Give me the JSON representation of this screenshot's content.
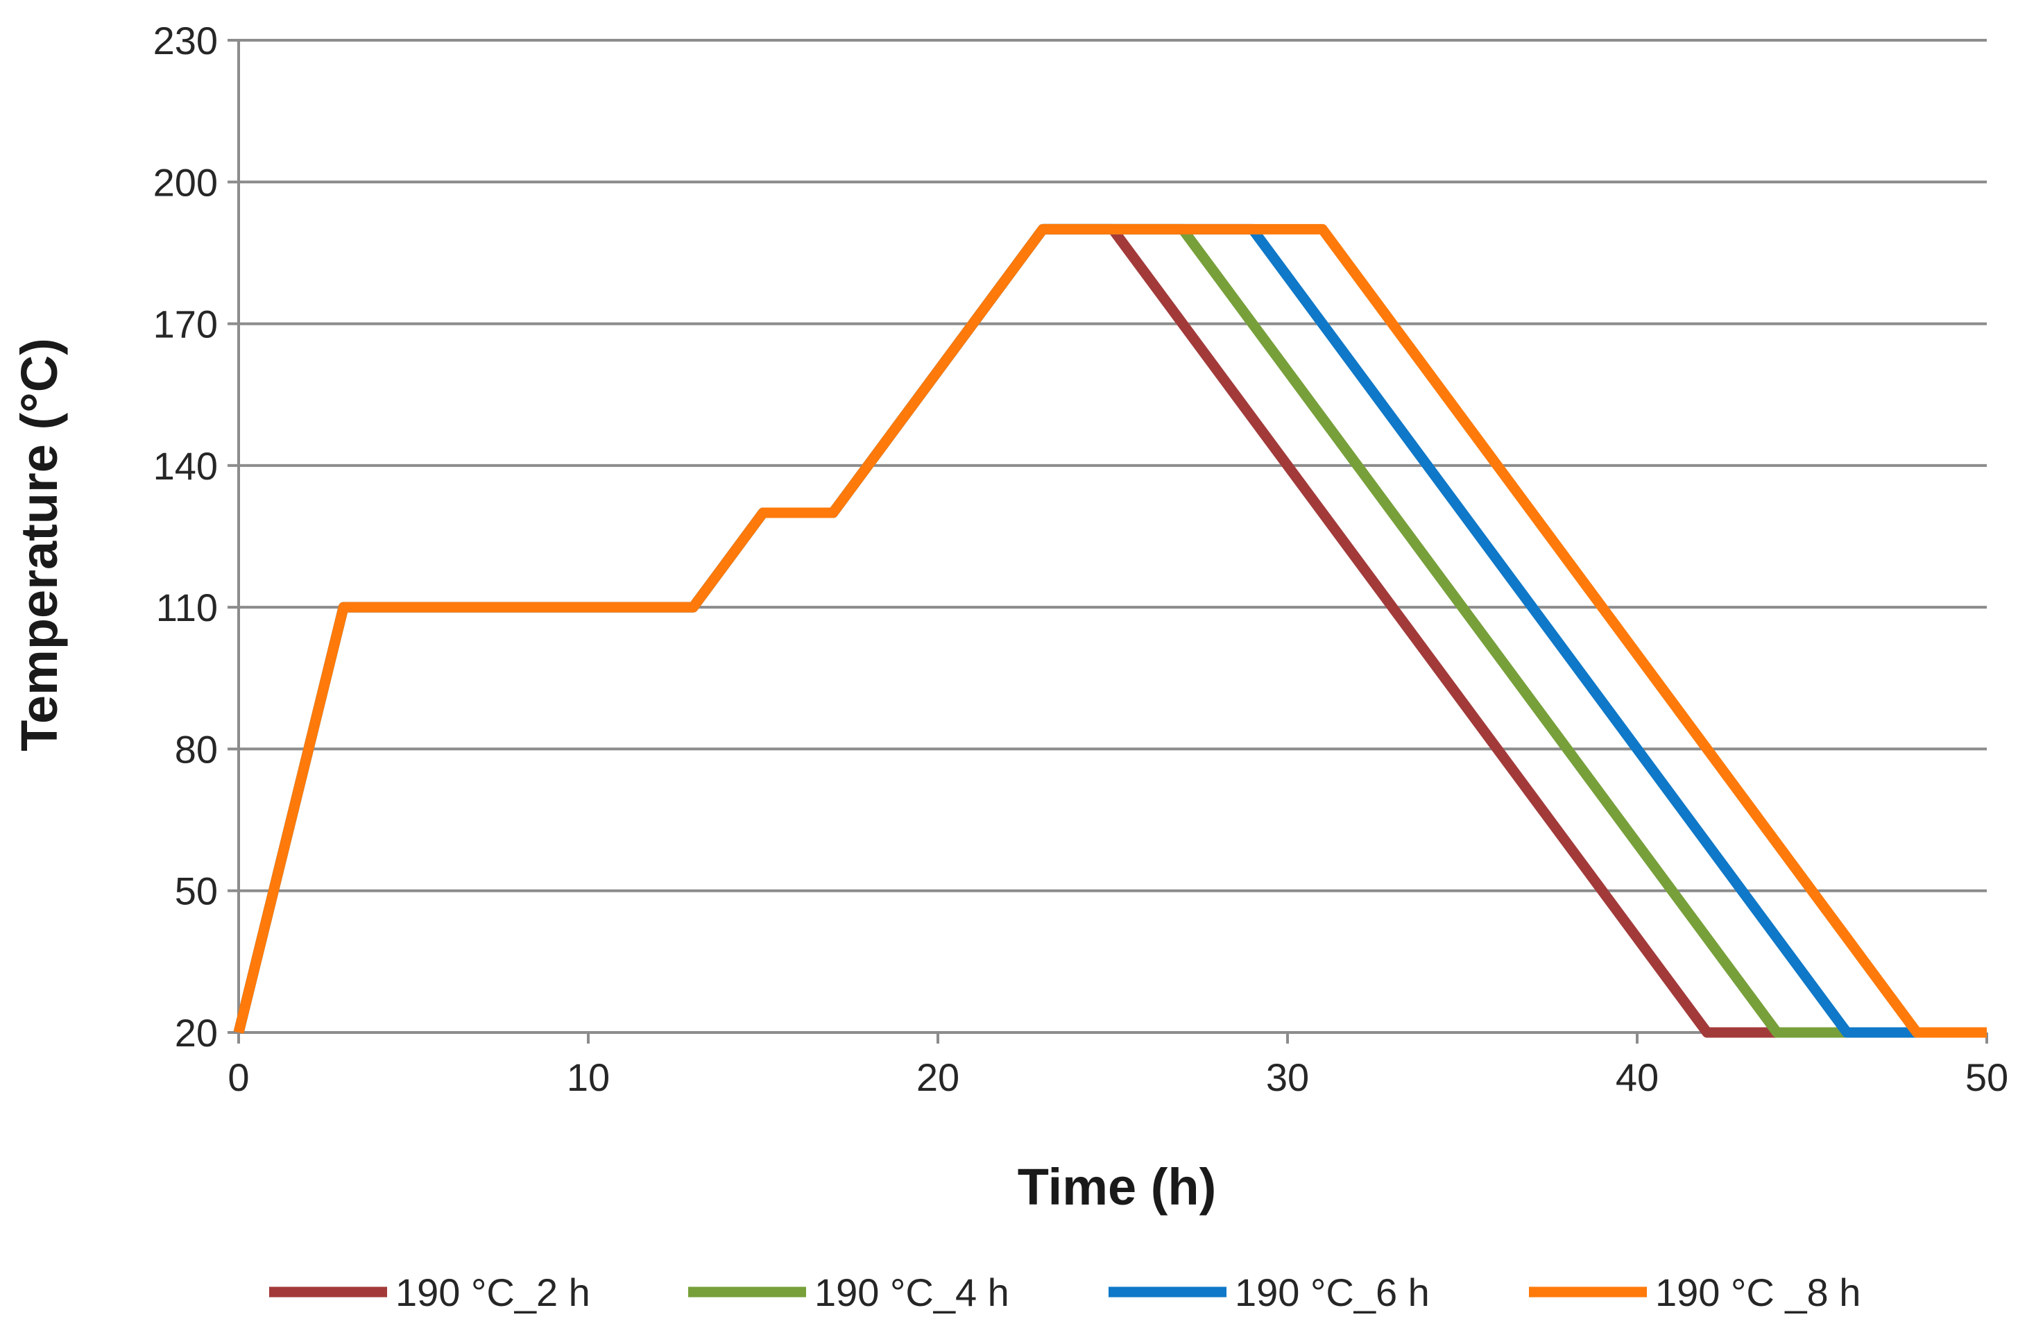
{
  "chart_data": {
    "type": "line",
    "title": "",
    "xlabel": "Time (h)",
    "ylabel": "Temperature (°C)",
    "xlim": [
      0,
      50
    ],
    "ylim": [
      20,
      230
    ],
    "xticks": [
      0,
      10,
      20,
      30,
      40,
      50
    ],
    "yticks": [
      20,
      50,
      80,
      110,
      140,
      170,
      200,
      230
    ],
    "grid": true,
    "legend_position": "bottom",
    "series": [
      {
        "name": "190 °C_2 h",
        "color": "#A33A3A",
        "x": [
          0,
          3,
          13,
          15,
          17,
          23,
          25,
          42,
          44
        ],
        "y": [
          20,
          110,
          110,
          130,
          130,
          190,
          190,
          20,
          20
        ]
      },
      {
        "name": "190 °C_4 h",
        "color": "#77A03A",
        "x": [
          0,
          3,
          13,
          15,
          17,
          23,
          27,
          44,
          46
        ],
        "y": [
          20,
          110,
          110,
          130,
          130,
          190,
          190,
          20,
          20
        ]
      },
      {
        "name": "190 °C_6 h",
        "color": "#0F78C8",
        "x": [
          0,
          3,
          13,
          15,
          17,
          23,
          29,
          46,
          48
        ],
        "y": [
          20,
          110,
          110,
          130,
          130,
          190,
          190,
          20,
          20
        ]
      },
      {
        "name": "190 °C _8 h",
        "color": "#FF7A0A",
        "x": [
          0,
          3,
          13,
          15,
          17,
          23,
          31,
          48,
          50
        ],
        "y": [
          20,
          110,
          110,
          130,
          130,
          190,
          190,
          20,
          20
        ]
      }
    ]
  }
}
